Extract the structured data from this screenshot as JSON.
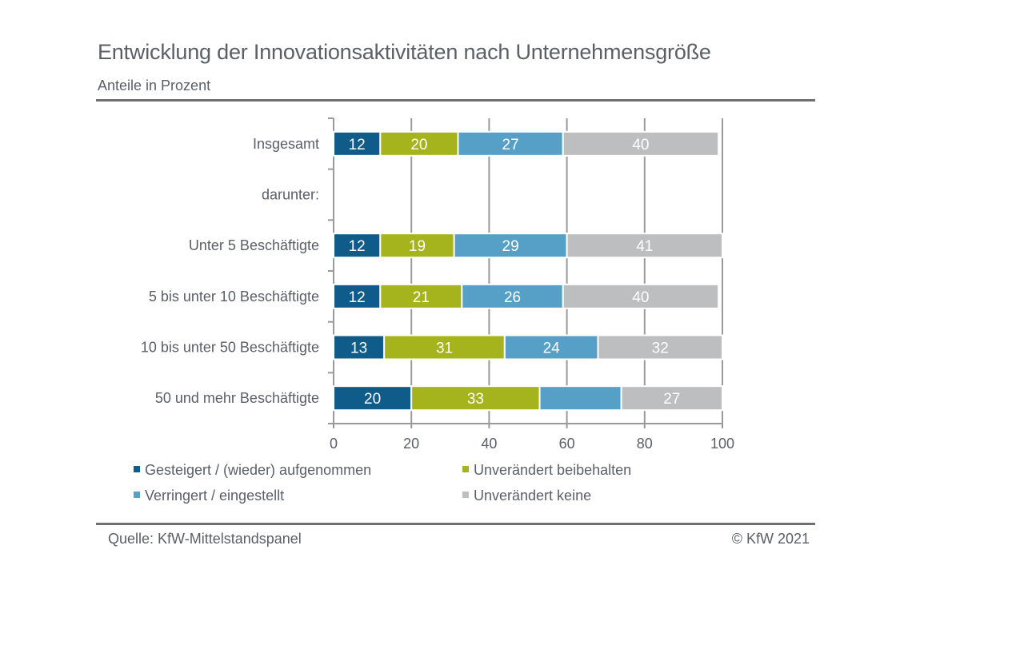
{
  "header": {
    "title": "Entwicklung der Innovationsaktivitäten nach Unternehmensgröße",
    "subtitle": "Anteile in Prozent"
  },
  "footer": {
    "source": "Quelle: KfW-Mittelstandspanel",
    "copyright": "© KfW 2021"
  },
  "chart_data": {
    "type": "bar",
    "orientation": "horizontal",
    "stacked": true,
    "title": "Entwicklung der Innovationsaktivitäten nach Unternehmensgröße",
    "subtitle": "Anteile in Prozent",
    "xlabel": "",
    "ylabel": "",
    "xlim": [
      0,
      100
    ],
    "xticks": [
      0,
      20,
      40,
      60,
      80,
      100
    ],
    "grid": "vertical",
    "legend_position": "bottom",
    "categories": [
      "Insgesamt",
      "darunter:",
      "Unter 5 Beschäftigte",
      "5 bis unter 10 Beschäftigte",
      "10 bis unter 50 Beschäftigte",
      "50 und mehr Beschäftigte"
    ],
    "series": [
      {
        "name": "Gesteigert / (wieder) aufgenommen",
        "color": "#0f5b8a",
        "values": [
          12,
          null,
          12,
          12,
          13,
          20
        ],
        "labels": [
          "12",
          "",
          "12",
          "12",
          "13",
          "20"
        ]
      },
      {
        "name": "Unverändert beibehalten",
        "color": "#a5b41c",
        "values": [
          20,
          null,
          19,
          21,
          31,
          33
        ],
        "labels": [
          "20",
          "",
          "19",
          "21",
          "31",
          "33"
        ]
      },
      {
        "name": "Verringert / eingestellt",
        "color": "#56a0c8",
        "values": [
          27,
          null,
          29,
          26,
          24,
          21
        ],
        "labels": [
          "27",
          "",
          "29",
          "26",
          "24",
          ""
        ]
      },
      {
        "name": "Unverändert keine",
        "color": "#bcbec0",
        "values": [
          40,
          null,
          41,
          40,
          32,
          27
        ],
        "labels": [
          "40",
          "",
          "41",
          "40",
          "32",
          "27"
        ]
      }
    ]
  },
  "colors": {
    "text": "#5b6065",
    "grid": "#9a9a9a",
    "rule": "#6d7175"
  }
}
